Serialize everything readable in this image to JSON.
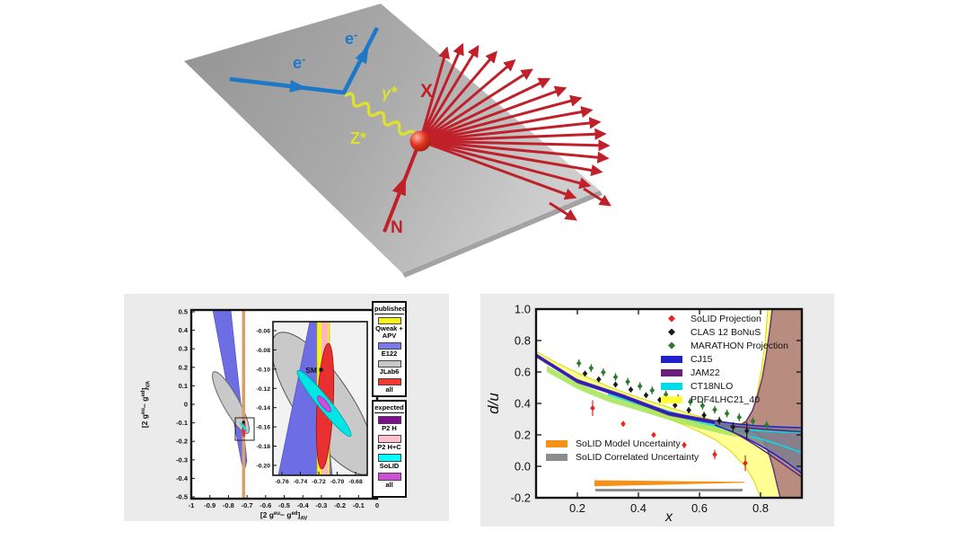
{
  "figure": {
    "background": "#ffffff",
    "panel_background": "#ebebeb"
  },
  "diagram": {
    "labels": {
      "incoming_electron_base": "e",
      "incoming_electron_sup": "-",
      "scattered_electron_base": "e",
      "scattered_electron_sup": "-",
      "photon": "γ*",
      "z_boson": "Z*",
      "hadrons": "X",
      "nucleon": "N"
    },
    "colors": {
      "electron": "#1e78c8",
      "boson": "#dde02e",
      "hadron": "#c0202a",
      "plane_dark": "#8f8f8f",
      "plane_light": "#cfcfcf",
      "nucleon_ball": "#d92c1e"
    }
  },
  "chart_data": [
    {
      "type": "area",
      "title": "",
      "xlabel_parts": {
        "o": "[2 g",
        "s1": "eu",
        "m": "− g",
        "s2": "ed",
        "c": "]",
        "sub": "AV"
      },
      "ylabel_parts": {
        "o": "[2 g",
        "s1": "eu",
        "m": "− g",
        "s2": "ed",
        "c": "]",
        "sub": "VA"
      },
      "xlim": [
        -1,
        0
      ],
      "ylim": [
        -0.5,
        0.5
      ],
      "x_ticks": [
        "-1",
        "-0.9",
        "-0.8",
        "-0.7",
        "-0.6",
        "-0.5",
        "-0.4",
        "-0.3",
        "-0.2",
        "-0.1",
        "0"
      ],
      "y_ticks": [
        "0.5",
        "0.4",
        "0.3",
        "0.2",
        "0.1",
        "0",
        "-0.1",
        "-0.2",
        "-0.3",
        "-0.4",
        "-0.5"
      ],
      "grid": false,
      "sm_point": {
        "label": "SM",
        "x": -0.718,
        "y": -0.1
      },
      "regions": [
        {
          "name": "Qweak + APV",
          "group": "published",
          "color": "#f6f320",
          "main_plot_color": "#d9a06a",
          "shape": "vertical band",
          "x_center": -0.716,
          "x_width": 0.014
        },
        {
          "name": "E122",
          "group": "published",
          "color": "#6e6ee4",
          "shape": "diagonal band",
          "top_x_range": [
            -0.84,
            -0.745
          ],
          "tip": [
            -0.71,
            -0.34
          ]
        },
        {
          "name": "JLab6",
          "group": "published",
          "color": "#c9c9c9",
          "shape": "tilted ellipse",
          "center": [
            -0.785,
            0.01
          ]
        },
        {
          "name": "all",
          "group": "published",
          "color": "#e83030",
          "shape": "narrow vertical ellipse",
          "center": [
            -0.713,
            -0.138
          ]
        },
        {
          "name": "P2 H",
          "group": "expected",
          "color": "#7d0f8e"
        },
        {
          "name": "P2 H+C",
          "group": "expected",
          "color": "#ffb6c1",
          "shape": "vertical band",
          "x_center": -0.7135,
          "x_width": 0.007
        },
        {
          "name": "SoLID",
          "group": "expected",
          "color": "#00e6e6",
          "shape": "tilted narrow ellipse",
          "center": [
            -0.714,
            -0.136
          ]
        },
        {
          "name": "all",
          "group": "expected",
          "color": "#cc4fd6",
          "shape": "small ellipse",
          "center": [
            -0.714,
            -0.134
          ]
        }
      ],
      "legend_published": {
        "title": "published",
        "items": [
          {
            "label": "Qweak + APV",
            "color": "#f6f320"
          },
          {
            "label": "E122",
            "color": "#7b7be8"
          },
          {
            "label": "JLab6",
            "color": "#c9c9c9"
          },
          {
            "label": "all",
            "color": "#f03a30"
          }
        ]
      },
      "legend_expected": {
        "title": "expected",
        "items": [
          {
            "label": "P2 H",
            "color": "#7d0f8e"
          },
          {
            "label": "P2 H+C",
            "color": "#ffc0cb"
          },
          {
            "label": "SoLID",
            "color": "#00ffff"
          },
          {
            "label": "all",
            "color": "#cc4fd6"
          }
        ]
      },
      "inset": {
        "xlim": [
          -0.77,
          -0.667
        ],
        "ylim": [
          -0.21,
          -0.05
        ],
        "x_ticks": [
          "-0.76",
          "-0.74",
          "-0.72",
          "-0.70",
          "-0.68"
        ],
        "y_ticks": [
          "-0.06",
          "-0.08",
          "-0.10",
          "-0.12",
          "-0.14",
          "-0.16",
          "-0.18",
          "-0.20"
        ],
        "sm_label": "SM"
      }
    },
    {
      "type": "scatter",
      "title": "",
      "xlabel": "x",
      "ylabel": "d/u",
      "xlim": [
        0.065,
        0.935
      ],
      "ylim": [
        -0.2,
        1.0
      ],
      "x_ticks": [
        "0.2",
        "0.4",
        "0.6",
        "0.8"
      ],
      "y_ticks": [
        "1.0",
        "0.8",
        "0.6",
        "0.4",
        "0.2",
        "0.0",
        "-0.2"
      ],
      "grid": false,
      "legend_position": "upper right",
      "series": [
        {
          "name": "SoLID Projection",
          "marker": "diamond",
          "color": "#e8251f",
          "x": [
            0.25,
            0.35,
            0.45,
            0.55,
            0.65,
            0.75
          ],
          "y": [
            0.37,
            0.27,
            0.2,
            0.135,
            0.075,
            0.02
          ],
          "yerr": [
            0.05,
            0.018,
            0.015,
            0.02,
            0.03,
            0.05
          ]
        },
        {
          "name": "CLAS 12 BoNuS",
          "marker": "diamond",
          "color": "#1a1a1a",
          "x": [
            0.225,
            0.27,
            0.325,
            0.375,
            0.425,
            0.47,
            0.52,
            0.565,
            0.615,
            0.665,
            0.71,
            0.755
          ],
          "y": [
            0.59,
            0.553,
            0.52,
            0.488,
            0.452,
            0.422,
            0.388,
            0.357,
            0.325,
            0.29,
            0.25,
            0.225
          ],
          "yerr": [
            0.018,
            0.018,
            0.018,
            0.018,
            0.018,
            0.018,
            0.018,
            0.02,
            0.022,
            0.025,
            0.03,
            0.055
          ]
        },
        {
          "name": "MARATHON Projection",
          "marker": "diamond",
          "color": "#2c7a2c",
          "x": [
            0.205,
            0.245,
            0.285,
            0.325,
            0.365,
            0.405,
            0.445,
            0.49,
            0.53,
            0.57,
            0.61,
            0.65,
            0.69,
            0.73,
            0.775,
            0.82
          ],
          "y": [
            0.655,
            0.625,
            0.598,
            0.568,
            0.538,
            0.51,
            0.483,
            0.457,
            0.432,
            0.41,
            0.386,
            0.36,
            0.336,
            0.312,
            0.287,
            0.262
          ],
          "yerr": [
            0.025,
            0.025,
            0.025,
            0.025,
            0.025,
            0.025,
            0.025,
            0.025,
            0.025,
            0.025,
            0.025,
            0.025,
            0.025,
            0.025,
            0.025,
            0.025
          ]
        }
      ],
      "bands": [
        {
          "name": "CJ15",
          "color": "#2121cc"
        },
        {
          "name": "JAM22",
          "color": "#6a1f7a"
        },
        {
          "name": "CT18NLO",
          "color": "#00dce8"
        },
        {
          "name": "PDF4LHC21_40",
          "color": "#ffff33"
        }
      ],
      "band_fill_colors": {
        "pdf4lhc_fill": "#ffff94",
        "overlap_brown": "#b5867e",
        "overlap_green": "#a8e55e",
        "correlated_gray_lens": "#7e7e8e"
      },
      "uncertainties": [
        {
          "name": "SoLID Model Uncertainty",
          "color": "#f59116",
          "x_range": [
            0.256,
            0.745
          ],
          "y_center": -0.105,
          "shape": "tapering wedge"
        },
        {
          "name": "SoLID Correlated Uncertainty",
          "color": "#8c8c8c",
          "x_range": [
            0.26,
            0.742
          ],
          "y_center": -0.15,
          "shape": "bar"
        }
      ]
    }
  ]
}
